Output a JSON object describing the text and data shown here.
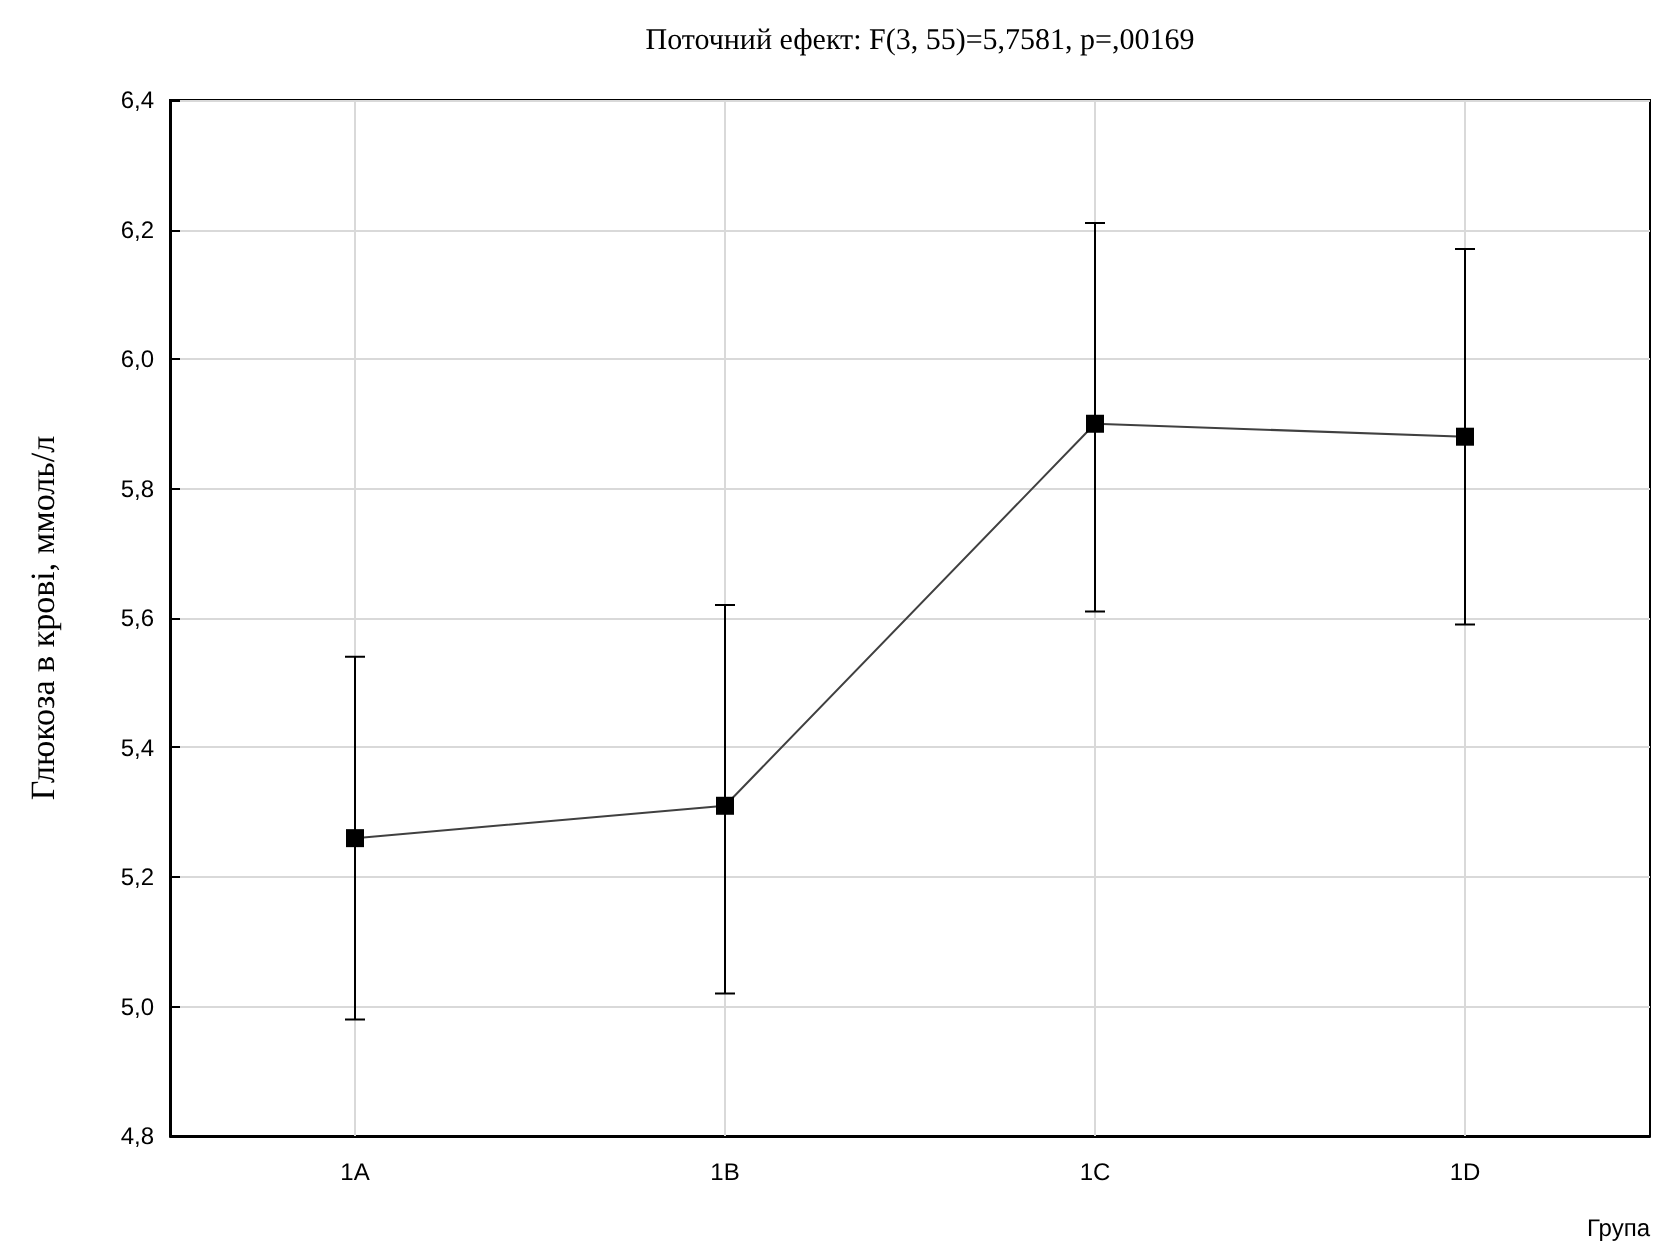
{
  "chart_data": {
    "type": "line",
    "title": "Поточний ефект: F(3, 55)=5,7581, p=,00169",
    "xlabel": "Група",
    "ylabel": "Глюкоза в крові, ммоль/л",
    "categories": [
      "1A",
      "1B",
      "1C",
      "1D"
    ],
    "series": [
      {
        "color": "#000000",
        "values": [
          5.26,
          5.31,
          5.9,
          5.88
        ],
        "errors": [
          [
            4.98,
            5.54
          ],
          [
            5.02,
            5.62
          ],
          [
            5.61,
            6.21
          ],
          [
            5.59,
            6.17
          ]
        ]
      }
    ],
    "ylim": [
      4.8,
      6.4
    ],
    "yticks": [
      {
        "value": 4.8,
        "label": "4,8"
      },
      {
        "value": 5.0,
        "label": "5,0"
      },
      {
        "value": 5.2,
        "label": "5,2"
      },
      {
        "value": 5.4,
        "label": "5,4"
      },
      {
        "value": 5.6,
        "label": "5,6"
      },
      {
        "value": 5.8,
        "label": "5,8"
      },
      {
        "value": 6.0,
        "label": "6,0"
      },
      {
        "value": 6.2,
        "label": "6,2"
      },
      {
        "value": 6.4,
        "label": "6,4"
      }
    ],
    "grid": true,
    "marker": "square",
    "line_style": "solid"
  }
}
